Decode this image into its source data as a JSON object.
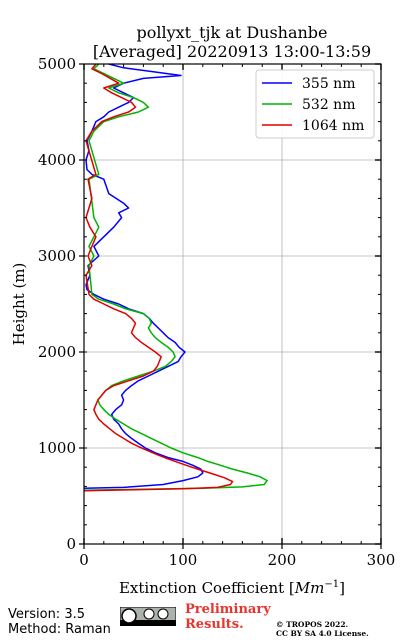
{
  "chart_data": {
    "type": "line",
    "title": [
      "pollyxt_tjk at Dushanbe",
      "[Averaged] 20220913 13:00-13:59"
    ],
    "xlabel": "Extinction Coefficient [",
    "xlabel_unit": "Mm",
    "xlabel_exp": "−1",
    "xlabel_end": "]",
    "ylabel": "Height (m)",
    "xlim": [
      0,
      300
    ],
    "ylim": [
      0,
      5000
    ],
    "xticks": [
      0,
      100,
      200,
      300
    ],
    "yticks": [
      0,
      1000,
      2000,
      3000,
      4000,
      5000
    ],
    "grid": true,
    "legend_position": "top-right",
    "series": [
      {
        "name": "355 nm",
        "color": "#0000ff",
        "points": [
          [
            0,
            580
          ],
          [
            40,
            590
          ],
          [
            80,
            620
          ],
          [
            100,
            660
          ],
          [
            115,
            700
          ],
          [
            120,
            740
          ],
          [
            118,
            780
          ],
          [
            110,
            820
          ],
          [
            100,
            860
          ],
          [
            85,
            900
          ],
          [
            72,
            950
          ],
          [
            62,
            1000
          ],
          [
            55,
            1050
          ],
          [
            48,
            1100
          ],
          [
            42,
            1150
          ],
          [
            38,
            1200
          ],
          [
            35,
            1250
          ],
          [
            30,
            1300
          ],
          [
            28,
            1350
          ],
          [
            32,
            1400
          ],
          [
            38,
            1450
          ],
          [
            40,
            1500
          ],
          [
            38,
            1550
          ],
          [
            42,
            1600
          ],
          [
            48,
            1650
          ],
          [
            55,
            1700
          ],
          [
            65,
            1750
          ],
          [
            75,
            1800
          ],
          [
            85,
            1850
          ],
          [
            95,
            1900
          ],
          [
            98,
            1950
          ],
          [
            102,
            2000
          ],
          [
            96,
            2050
          ],
          [
            92,
            2100
          ],
          [
            85,
            2150
          ],
          [
            80,
            2200
          ],
          [
            75,
            2250
          ],
          [
            70,
            2300
          ],
          [
            66,
            2350
          ],
          [
            60,
            2400
          ],
          [
            45,
            2450
          ],
          [
            35,
            2500
          ],
          [
            20,
            2550
          ],
          [
            10,
            2600
          ],
          [
            3,
            2650
          ],
          [
            2,
            2700
          ],
          [
            6,
            2800
          ],
          [
            4,
            2900
          ],
          [
            15,
            3000
          ],
          [
            10,
            3100
          ],
          [
            20,
            3200
          ],
          [
            30,
            3300
          ],
          [
            38,
            3400
          ],
          [
            35,
            3450
          ],
          [
            45,
            3500
          ],
          [
            40,
            3550
          ],
          [
            25,
            3650
          ],
          [
            20,
            3800
          ],
          [
            8,
            3850
          ],
          [
            3,
            3900
          ],
          [
            2,
            4000
          ],
          [
            5,
            4100
          ],
          [
            3,
            4200
          ],
          [
            8,
            4300
          ],
          [
            12,
            4400
          ],
          [
            20,
            4450
          ],
          [
            25,
            4500
          ],
          [
            35,
            4550
          ],
          [
            45,
            4600
          ],
          [
            50,
            4650
          ],
          [
            40,
            4700
          ],
          [
            30,
            4750
          ],
          [
            40,
            4800
          ],
          [
            60,
            4850
          ],
          [
            98,
            4880
          ],
          [
            70,
            4920
          ],
          [
            40,
            4960
          ],
          [
            25,
            5000
          ]
        ]
      },
      {
        "name": "532 nm",
        "color": "#00b400",
        "points": [
          [
            0,
            560
          ],
          [
            60,
            570
          ],
          [
            120,
            580
          ],
          [
            160,
            595
          ],
          [
            182,
            620
          ],
          [
            185,
            660
          ],
          [
            178,
            700
          ],
          [
            165,
            740
          ],
          [
            150,
            780
          ],
          [
            138,
            820
          ],
          [
            125,
            860
          ],
          [
            115,
            900
          ],
          [
            100,
            950
          ],
          [
            88,
            1000
          ],
          [
            78,
            1050
          ],
          [
            68,
            1100
          ],
          [
            58,
            1150
          ],
          [
            48,
            1200
          ],
          [
            40,
            1250
          ],
          [
            32,
            1300
          ],
          [
            25,
            1350
          ],
          [
            20,
            1400
          ],
          [
            16,
            1450
          ],
          [
            14,
            1500
          ],
          [
            18,
            1550
          ],
          [
            22,
            1600
          ],
          [
            28,
            1650
          ],
          [
            40,
            1700
          ],
          [
            55,
            1750
          ],
          [
            70,
            1800
          ],
          [
            82,
            1850
          ],
          [
            88,
            1900
          ],
          [
            92,
            1950
          ],
          [
            90,
            2000
          ],
          [
            85,
            2050
          ],
          [
            78,
            2100
          ],
          [
            72,
            2150
          ],
          [
            68,
            2200
          ],
          [
            65,
            2250
          ],
          [
            68,
            2300
          ],
          [
            66,
            2350
          ],
          [
            60,
            2400
          ],
          [
            42,
            2450
          ],
          [
            30,
            2500
          ],
          [
            15,
            2550
          ],
          [
            8,
            2600
          ],
          [
            5,
            2900
          ],
          [
            10,
            3000
          ],
          [
            5,
            3100
          ],
          [
            10,
            3200
          ],
          [
            15,
            3300
          ],
          [
            10,
            3400
          ],
          [
            5,
            3800
          ],
          [
            15,
            3850
          ],
          [
            5,
            4200
          ],
          [
            10,
            4300
          ],
          [
            20,
            4400
          ],
          [
            35,
            4450
          ],
          [
            55,
            4500
          ],
          [
            65,
            4550
          ],
          [
            60,
            4600
          ],
          [
            50,
            4650
          ],
          [
            35,
            4700
          ],
          [
            25,
            4750
          ],
          [
            40,
            4800
          ],
          [
            20,
            4900
          ],
          [
            10,
            4950
          ],
          [
            15,
            5000
          ]
        ]
      },
      {
        "name": "1064 nm",
        "color": "#e00000",
        "points": [
          [
            0,
            555
          ],
          [
            50,
            565
          ],
          [
            100,
            575
          ],
          [
            135,
            590
          ],
          [
            148,
            620
          ],
          [
            150,
            650
          ],
          [
            142,
            690
          ],
          [
            130,
            730
          ],
          [
            118,
            770
          ],
          [
            106,
            810
          ],
          [
            95,
            850
          ],
          [
            84,
            890
          ],
          [
            74,
            930
          ],
          [
            65,
            970
          ],
          [
            56,
            1010
          ],
          [
            48,
            1050
          ],
          [
            40,
            1100
          ],
          [
            32,
            1150
          ],
          [
            26,
            1200
          ],
          [
            20,
            1250
          ],
          [
            15,
            1300
          ],
          [
            12,
            1350
          ],
          [
            10,
            1400
          ],
          [
            12,
            1450
          ],
          [
            14,
            1500
          ],
          [
            18,
            1550
          ],
          [
            22,
            1600
          ],
          [
            30,
            1650
          ],
          [
            45,
            1700
          ],
          [
            60,
            1750
          ],
          [
            70,
            1800
          ],
          [
            74,
            1850
          ],
          [
            76,
            1900
          ],
          [
            78,
            1950
          ],
          [
            72,
            2000
          ],
          [
            65,
            2050
          ],
          [
            58,
            2100
          ],
          [
            52,
            2150
          ],
          [
            48,
            2200
          ],
          [
            50,
            2250
          ],
          [
            52,
            2300
          ],
          [
            48,
            2350
          ],
          [
            42,
            2400
          ],
          [
            30,
            2450
          ],
          [
            20,
            2500
          ],
          [
            10,
            2550
          ],
          [
            5,
            2600
          ],
          [
            2,
            2800
          ],
          [
            8,
            2900
          ],
          [
            4,
            3000
          ],
          [
            8,
            3100
          ],
          [
            12,
            3200
          ],
          [
            6,
            3300
          ],
          [
            2,
            3400
          ],
          [
            8,
            3600
          ],
          [
            4,
            3800
          ],
          [
            12,
            3850
          ],
          [
            2,
            4200
          ],
          [
            8,
            4300
          ],
          [
            18,
            4400
          ],
          [
            30,
            4450
          ],
          [
            45,
            4500
          ],
          [
            52,
            4550
          ],
          [
            48,
            4600
          ],
          [
            38,
            4650
          ],
          [
            28,
            4700
          ],
          [
            20,
            4750
          ],
          [
            35,
            4800
          ],
          [
            18,
            4900
          ],
          [
            8,
            4950
          ],
          [
            12,
            5000
          ]
        ]
      }
    ]
  },
  "footer": {
    "version": "Version: 3.5",
    "method": "Method: Raman",
    "preliminary_line1": "Preliminary",
    "preliminary_line2": "Results.",
    "copyright_line1": "© TROPOS 2022.",
    "copyright_line2": "CC BY SA 4.0 License."
  }
}
